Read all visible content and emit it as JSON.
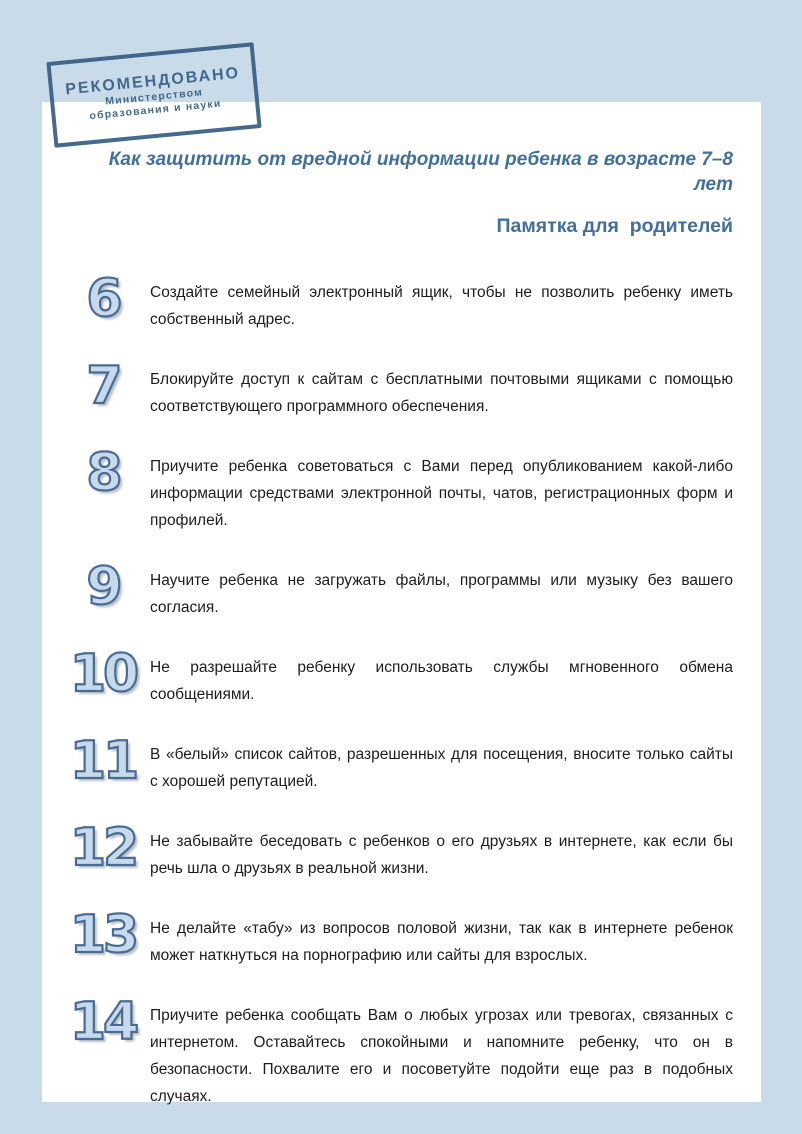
{
  "page": {
    "background_color": "#c9dbe8",
    "card_color": "#ffffff"
  },
  "stamp": {
    "line1": "РЕКОМЕНДОВАНО",
    "line2": "Министерством",
    "line3": "образования и науки",
    "color": "#3c6489"
  },
  "header": {
    "title": "Как защитить от вредной информации ребенка в возрасте 7–8 лет",
    "subtitle": "Памятка для  родителей",
    "color": "#41709f"
  },
  "list": {
    "number_fill_color": "#c6daec",
    "number_outline_color": "#4a6c94",
    "items": [
      {
        "number": "6",
        "text": "Создайте семейный электронный ящик, чтобы не позволить ребенку иметь собственный адрес."
      },
      {
        "number": "7",
        "text": "Блокируйте доступ к сайтам с бесплатными почтовыми ящиками с помощью соответствующего программного обеспечения."
      },
      {
        "number": "8",
        "text": "Приучите ребенка советоваться с Вами перед опубликованием какой-либо информации средствами электронной почты, чатов, регистрационных форм и профилей."
      },
      {
        "number": "9",
        "text": "Научите ребенка не загружать файлы, программы или музыку без вашего согласия."
      },
      {
        "number": "10",
        "text": "Не разрешайте ребенку использовать службы мгновенного обмена сообщениями."
      },
      {
        "number": "11",
        "text": "В «белый» список сайтов, разрешенных для посещения, вносите только сайты с хорошей репутацией."
      },
      {
        "number": "12",
        "text": "Не забывайте беседовать с ребенков о его друзьях в интернете, как если бы речь шла о друзьях в реальной жизни."
      },
      {
        "number": "13",
        "text": "Не делайте «табу» из вопросов половой жизни, так как в интернете ребенок может наткнуться на порнографию или сайты для взрослых."
      },
      {
        "number": "14",
        "text": "Приучите ребенка сообщать Вам о любых угрозах или тревогах, связанных с интернетом. Оставайтесь спокойными и напомните ребенку, что он в безопасности. Похвалите его и посоветуйте подойти еще раз в подобных случаях."
      }
    ]
  }
}
